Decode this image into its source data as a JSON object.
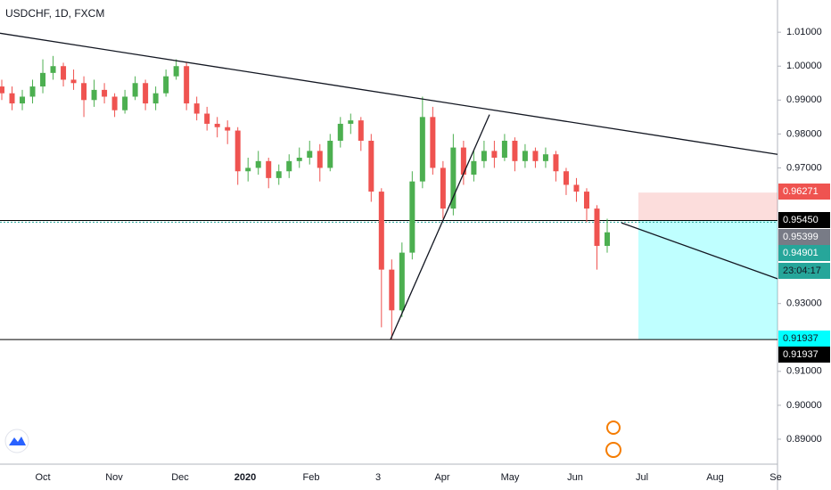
{
  "chart_data": {
    "type": "candlestick",
    "title": "USDCHF, 1D, FXCM",
    "up_color": "#4caf50",
    "down_color": "#ef5350",
    "ylim": [
      0.8829,
      1.0195
    ],
    "yticks": [
      {
        "value": 1.01,
        "label": "1.01000"
      },
      {
        "value": 1.0,
        "label": "1.00000"
      },
      {
        "value": 0.99,
        "label": "0.99000"
      },
      {
        "value": 0.98,
        "label": "0.98000"
      },
      {
        "value": 0.97,
        "label": "0.97000"
      },
      {
        "value": 0.93,
        "label": "0.93000"
      },
      {
        "value": 0.91,
        "label": "0.91000"
      },
      {
        "value": 0.9,
        "label": "0.90000"
      },
      {
        "value": 0.89,
        "label": "0.89000"
      }
    ],
    "time_labels": [
      "Oct",
      "Nov",
      "Dec",
      "2020",
      "Feb",
      "3",
      "Apr",
      "May",
      "Jun",
      "Jul",
      "Aug",
      "Se"
    ],
    "ohlc": [
      [
        0.994,
        0.996,
        0.99,
        0.992
      ],
      [
        0.992,
        0.994,
        0.987,
        0.989
      ],
      [
        0.989,
        0.993,
        0.987,
        0.991
      ],
      [
        0.991,
        0.996,
        0.989,
        0.994
      ],
      [
        0.994,
        1.002,
        0.992,
        0.998
      ],
      [
        0.998,
        1.003,
        0.996,
        1.0
      ],
      [
        1.0,
        1.001,
        0.994,
        0.996
      ],
      [
        0.996,
        0.999,
        0.993,
        0.995
      ],
      [
        0.995,
        0.997,
        0.985,
        0.99
      ],
      [
        0.99,
        0.996,
        0.988,
        0.993
      ],
      [
        0.993,
        0.995,
        0.989,
        0.991
      ],
      [
        0.991,
        0.992,
        0.985,
        0.987
      ],
      [
        0.987,
        0.993,
        0.986,
        0.991
      ],
      [
        0.991,
        0.997,
        0.99,
        0.995
      ],
      [
        0.995,
        0.996,
        0.987,
        0.989
      ],
      [
        0.989,
        0.994,
        0.987,
        0.992
      ],
      [
        0.992,
        0.999,
        0.991,
        0.997
      ],
      [
        0.997,
        1.002,
        0.996,
        1.0
      ],
      [
        1.0,
        1.001,
        0.987,
        0.989
      ],
      [
        0.989,
        0.991,
        0.984,
        0.986
      ],
      [
        0.986,
        0.988,
        0.981,
        0.983
      ],
      [
        0.983,
        0.985,
        0.979,
        0.982
      ],
      [
        0.982,
        0.984,
        0.977,
        0.981
      ],
      [
        0.981,
        0.982,
        0.965,
        0.969
      ],
      [
        0.969,
        0.973,
        0.966,
        0.97
      ],
      [
        0.97,
        0.975,
        0.968,
        0.972
      ],
      [
        0.972,
        0.973,
        0.964,
        0.967
      ],
      [
        0.967,
        0.971,
        0.965,
        0.969
      ],
      [
        0.969,
        0.974,
        0.967,
        0.972
      ],
      [
        0.972,
        0.976,
        0.97,
        0.973
      ],
      [
        0.973,
        0.978,
        0.971,
        0.975
      ],
      [
        0.975,
        0.977,
        0.966,
        0.97
      ],
      [
        0.97,
        0.98,
        0.969,
        0.978
      ],
      [
        0.978,
        0.985,
        0.976,
        0.983
      ],
      [
        0.983,
        0.986,
        0.98,
        0.984
      ],
      [
        0.984,
        0.985,
        0.975,
        0.978
      ],
      [
        0.978,
        0.98,
        0.96,
        0.963
      ],
      [
        0.963,
        0.964,
        0.923,
        0.94
      ],
      [
        0.94,
        0.943,
        0.9195,
        0.928
      ],
      [
        0.928,
        0.948,
        0.926,
        0.945
      ],
      [
        0.945,
        0.969,
        0.943,
        0.966
      ],
      [
        0.966,
        0.991,
        0.964,
        0.985
      ],
      [
        0.985,
        0.988,
        0.968,
        0.97
      ],
      [
        0.97,
        0.972,
        0.955,
        0.958
      ],
      [
        0.958,
        0.98,
        0.956,
        0.976
      ],
      [
        0.976,
        0.978,
        0.965,
        0.968
      ],
      [
        0.968,
        0.975,
        0.966,
        0.972
      ],
      [
        0.972,
        0.978,
        0.97,
        0.975
      ],
      [
        0.975,
        0.978,
        0.97,
        0.973
      ],
      [
        0.973,
        0.98,
        0.972,
        0.978
      ],
      [
        0.978,
        0.979,
        0.969,
        0.972
      ],
      [
        0.972,
        0.977,
        0.97,
        0.975
      ],
      [
        0.975,
        0.976,
        0.97,
        0.972
      ],
      [
        0.972,
        0.976,
        0.97,
        0.974
      ],
      [
        0.974,
        0.975,
        0.966,
        0.969
      ],
      [
        0.969,
        0.97,
        0.962,
        0.965
      ],
      [
        0.965,
        0.967,
        0.96,
        0.963
      ],
      [
        0.963,
        0.964,
        0.954,
        0.958
      ],
      [
        0.958,
        0.959,
        0.94,
        0.947
      ],
      [
        0.947,
        0.955,
        0.945,
        0.951
      ]
    ],
    "trendlines": [
      [
        1.0097,
        0.974
      ],
      [
        0.9194,
        0.9857
      ],
      [
        0.9538,
        0.9373
      ]
    ],
    "hlines": [
      {
        "value": 0.9545,
        "color": "#000000"
      },
      {
        "value": 0.91937,
        "color": "#000000"
      },
      {
        "value": 0.95399,
        "color": "#26a69a"
      }
    ],
    "position": {
      "target": 0.96271,
      "entry": 0.9545,
      "stop": 0.91937
    },
    "price_labels": [
      {
        "value": 0.96271,
        "label": "0.96271",
        "color": "#ef5350"
      },
      {
        "value": 0.9545,
        "label": "0.95450",
        "color": "#000000"
      },
      {
        "value": 0.95399,
        "label": "0.95399",
        "color": "#787b86"
      },
      {
        "value": 0.94901,
        "label": "0.94901",
        "color": "#26a69a"
      },
      {
        "value": 0.91937,
        "label": "0.91937",
        "color": "#00ffff"
      },
      {
        "value": 0.91937,
        "label": "0.91937",
        "color": "#000000"
      }
    ],
    "countdown": "23:04:17"
  }
}
